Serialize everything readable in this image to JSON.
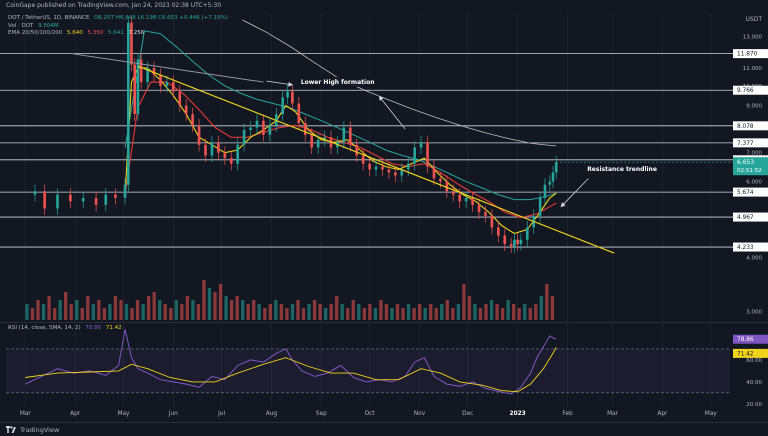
{
  "header": {
    "published": "CoinGape published on TradingView.com, Jan 24, 2023 02:38 UTC+5:30"
  },
  "legend": {
    "symbol_line": "DOT / TetherUS, 1D, BINANCE",
    "ohlc": "O6.207 H6.848 L6.198 C6.653 +0.446 (+7.19%)",
    "vol_label": "Vol · DOT",
    "vol_value": "9.504M",
    "ema_label": "EMA 20/50/100/200",
    "ema_values": [
      "5.640",
      "5.350",
      "5.641",
      "7.256"
    ]
  },
  "rsi_legend": {
    "label": "RSI (14, close, SMA, 14, 2)",
    "rsi_value": "78.86",
    "sma_value": "71.42"
  },
  "unit_label": "USDT",
  "footer": {
    "brand": "TradingView"
  },
  "colors": {
    "background": "#131722",
    "up": "#26a69a",
    "down": "#ef5350",
    "ema20": "#f0d31b",
    "ema50": "#e53935",
    "ema100": "#26a69a",
    "ema200": "#bfbfbf",
    "trendline": "#e8d11f",
    "level": "#d1d4dc",
    "rsi": "#7e57c2",
    "rsi_sma": "#f0d31b"
  },
  "chart_data": [
    {
      "type": "candlestick",
      "symbol": "DOT/USDT",
      "timeframe": "1D",
      "y_scale": "log",
      "ylim": [
        2.9,
        14.2
      ],
      "x_ticks": [
        "Mar",
        "Apr",
        "May",
        "Jun",
        "Jul",
        "Aug",
        "Sep",
        "Oct",
        "Nov",
        "Dec",
        "2023",
        "Feb",
        "Mar",
        "Apr",
        "May"
      ],
      "x_ticks_values": [
        0,
        31,
        61,
        92,
        122,
        153,
        184,
        214,
        245,
        275,
        306,
        337,
        365,
        396,
        426
      ],
      "x_range": [
        -12,
        438
      ],
      "y_ticks": [
        13.0,
        12.0,
        11.0,
        10.0,
        9.0,
        8.0,
        7.0,
        6.0,
        4.0,
        3.0
      ],
      "y_ticks_labels": [
        "13.000",
        "12.000",
        "11.000",
        "10.000",
        "9.000",
        "8.000",
        "7.000",
        "6.000",
        "4.000",
        "3.000"
      ],
      "horizontal_levels": [
        11.87,
        9.766,
        8.078,
        7.377,
        6.74,
        5.674,
        4.967,
        4.233
      ],
      "horizontal_levels_labels": [
        "11.870",
        "9.766",
        "8.078",
        "7.377",
        "6.740",
        "5.674",
        "4.967",
        "4.233"
      ],
      "current_price": "6.653",
      "countdown": "02:51:52",
      "price_path": [
        [
          0,
          5.6
        ],
        [
          6,
          5.7
        ],
        [
          12,
          5.2
        ],
        [
          20,
          5.6
        ],
        [
          28,
          5.4
        ],
        [
          36,
          5.5
        ],
        [
          44,
          5.3
        ],
        [
          50,
          5.6
        ],
        [
          56,
          5.5
        ],
        [
          62,
          5.9
        ],
        [
          64,
          14.0
        ],
        [
          66,
          11.2
        ],
        [
          68,
          8.6
        ],
        [
          70,
          11.5
        ],
        [
          72,
          10.2
        ],
        [
          76,
          11.0
        ],
        [
          80,
          10.6
        ],
        [
          84,
          10.0
        ],
        [
          88,
          10.2
        ],
        [
          92,
          9.7
        ],
        [
          96,
          9.0
        ],
        [
          100,
          8.6
        ],
        [
          104,
          8.1
        ],
        [
          108,
          7.3
        ],
        [
          112,
          6.9
        ],
        [
          116,
          7.4
        ],
        [
          120,
          7.0
        ],
        [
          124,
          6.8
        ],
        [
          128,
          6.6
        ],
        [
          132,
          7.3
        ],
        [
          136,
          7.9
        ],
        [
          140,
          8.0
        ],
        [
          144,
          8.3
        ],
        [
          148,
          7.7
        ],
        [
          152,
          8.1
        ],
        [
          156,
          8.6
        ],
        [
          160,
          9.4
        ],
        [
          163,
          9.7
        ],
        [
          166,
          9.1
        ],
        [
          170,
          8.2
        ],
        [
          174,
          7.7
        ],
        [
          178,
          7.2
        ],
        [
          182,
          7.5
        ],
        [
          186,
          7.6
        ],
        [
          190,
          7.2
        ],
        [
          194,
          7.4
        ],
        [
          198,
          8.0
        ],
        [
          202,
          7.3
        ],
        [
          206,
          6.9
        ],
        [
          210,
          6.6
        ],
        [
          214,
          6.4
        ],
        [
          218,
          6.5
        ],
        [
          222,
          6.4
        ],
        [
          226,
          6.3
        ],
        [
          230,
          6.2
        ],
        [
          234,
          6.4
        ],
        [
          238,
          6.6
        ],
        [
          242,
          7.2
        ],
        [
          246,
          7.4
        ],
        [
          250,
          6.5
        ],
        [
          254,
          6.1
        ],
        [
          258,
          6.0
        ],
        [
          262,
          5.7
        ],
        [
          266,
          5.6
        ],
        [
          270,
          5.4
        ],
        [
          274,
          5.5
        ],
        [
          278,
          5.3
        ],
        [
          282,
          5.1
        ],
        [
          286,
          5.0
        ],
        [
          290,
          4.7
        ],
        [
          294,
          4.5
        ],
        [
          298,
          4.3
        ],
        [
          302,
          4.25
        ],
        [
          304,
          4.4
        ],
        [
          306,
          4.3
        ],
        [
          308,
          4.4
        ],
        [
          312,
          4.7
        ],
        [
          316,
          5.0
        ],
        [
          320,
          5.5
        ],
        [
          323,
          5.9
        ],
        [
          326,
          6.0
        ],
        [
          328,
          6.3
        ],
        [
          330,
          6.653
        ]
      ],
      "ema20": [
        [
          62,
          5.6
        ],
        [
          66,
          10.2
        ],
        [
          70,
          11.0
        ],
        [
          76,
          11.0
        ],
        [
          84,
          10.3
        ],
        [
          92,
          9.5
        ],
        [
          100,
          8.6
        ],
        [
          108,
          7.6
        ],
        [
          116,
          7.3
        ],
        [
          124,
          7.0
        ],
        [
          132,
          7.1
        ],
        [
          140,
          7.6
        ],
        [
          148,
          7.9
        ],
        [
          156,
          8.3
        ],
        [
          162,
          9.0
        ],
        [
          168,
          8.7
        ],
        [
          176,
          7.9
        ],
        [
          184,
          7.5
        ],
        [
          192,
          7.4
        ],
        [
          200,
          7.5
        ],
        [
          208,
          7.1
        ],
        [
          216,
          6.7
        ],
        [
          224,
          6.5
        ],
        [
          232,
          6.4
        ],
        [
          240,
          6.6
        ],
        [
          248,
          6.8
        ],
        [
          256,
          6.3
        ],
        [
          264,
          5.9
        ],
        [
          272,
          5.6
        ],
        [
          280,
          5.4
        ],
        [
          288,
          5.1
        ],
        [
          296,
          4.75
        ],
        [
          304,
          4.55
        ],
        [
          312,
          4.65
        ],
        [
          320,
          5.1
        ],
        [
          326,
          5.5
        ],
        [
          330,
          5.64
        ]
      ],
      "ema50": [
        [
          62,
          5.6
        ],
        [
          70,
          8.9
        ],
        [
          78,
          10.2
        ],
        [
          88,
          10.2
        ],
        [
          98,
          9.6
        ],
        [
          108,
          8.8
        ],
        [
          118,
          8.0
        ],
        [
          128,
          7.6
        ],
        [
          138,
          7.6
        ],
        [
          148,
          7.8
        ],
        [
          158,
          8.0
        ],
        [
          168,
          8.1
        ],
        [
          178,
          7.9
        ],
        [
          188,
          7.6
        ],
        [
          198,
          7.4
        ],
        [
          208,
          7.2
        ],
        [
          218,
          6.9
        ],
        [
          228,
          6.6
        ],
        [
          238,
          6.5
        ],
        [
          248,
          6.6
        ],
        [
          258,
          6.3
        ],
        [
          268,
          5.95
        ],
        [
          278,
          5.65
        ],
        [
          288,
          5.4
        ],
        [
          298,
          5.1
        ],
        [
          308,
          4.95
        ],
        [
          318,
          5.05
        ],
        [
          326,
          5.25
        ],
        [
          330,
          5.35
        ]
      ],
      "ema100": [
        [
          62,
          7.2
        ],
        [
          74,
          13.4
        ],
        [
          84,
          13.2
        ],
        [
          94,
          12.3
        ],
        [
          104,
          11.4
        ],
        [
          114,
          10.6
        ],
        [
          124,
          10.0
        ],
        [
          134,
          9.6
        ],
        [
          144,
          9.3
        ],
        [
          154,
          9.1
        ],
        [
          164,
          8.9
        ],
        [
          174,
          8.6
        ],
        [
          184,
          8.3
        ],
        [
          194,
          8.0
        ],
        [
          204,
          7.7
        ],
        [
          214,
          7.4
        ],
        [
          224,
          7.1
        ],
        [
          234,
          6.9
        ],
        [
          244,
          6.75
        ],
        [
          254,
          6.5
        ],
        [
          264,
          6.25
        ],
        [
          274,
          6.0
        ],
        [
          284,
          5.8
        ],
        [
          294,
          5.6
        ],
        [
          304,
          5.45
        ],
        [
          314,
          5.45
        ],
        [
          324,
          5.55
        ],
        [
          330,
          5.64
        ]
      ],
      "ema200": [
        [
          135,
          14.2
        ],
        [
          150,
          13.3
        ],
        [
          165,
          12.3
        ],
        [
          180,
          11.3
        ],
        [
          195,
          10.4
        ],
        [
          210,
          9.8
        ],
        [
          225,
          9.3
        ],
        [
          240,
          8.85
        ],
        [
          255,
          8.45
        ],
        [
          270,
          8.1
        ],
        [
          285,
          7.8
        ],
        [
          300,
          7.55
        ],
        [
          315,
          7.35
        ],
        [
          330,
          7.256
        ]
      ],
      "trendline": [
        [
          70,
          11.1
        ],
        [
          366,
          4.1
        ]
      ],
      "gray_line": [
        [
          30,
          11.85
        ],
        [
          148,
          10.2
        ]
      ],
      "annotations": [
        {
          "text": "Lower High formation",
          "x": 170,
          "y": 10.1
        },
        {
          "text": "Resistance trendline",
          "x": 348,
          "y": 6.35
        }
      ],
      "arrows": [
        {
          "from": [
            150,
            10.25
          ],
          "to": [
            166,
            10.05
          ]
        },
        {
          "from": [
            236,
            7.95
          ],
          "to": [
            220,
            9.45
          ]
        },
        {
          "from": [
            350,
            6.1
          ],
          "to": [
            333,
            5.25
          ]
        }
      ]
    },
    {
      "type": "bar",
      "title": "Volume",
      "x_range": [
        -12,
        438
      ],
      "values_relative": [
        0.4,
        0.3,
        0.5,
        0.4,
        0.6,
        0.3,
        0.5,
        0.7,
        0.4,
        0.5,
        0.3,
        0.6,
        0.4,
        0.5,
        0.3,
        0.4,
        0.6,
        0.5,
        0.4,
        0.3,
        0.5,
        0.4,
        0.6,
        0.7,
        0.5,
        0.4,
        0.3,
        0.5,
        0.4,
        0.6,
        0.5,
        0.4,
        1.0,
        0.8,
        0.7,
        0.9,
        0.6,
        0.5,
        0.6,
        0.5,
        0.4,
        0.5,
        0.4,
        0.3,
        0.4,
        0.5,
        0.4,
        0.3,
        0.4,
        0.5,
        0.3,
        0.4,
        0.5,
        0.4,
        0.3,
        0.4,
        0.6,
        0.4,
        0.3,
        0.5,
        0.4,
        0.3,
        0.4,
        0.3,
        0.5,
        0.4,
        0.3,
        0.4,
        0.3,
        0.4,
        0.3,
        0.4,
        0.3,
        0.4,
        0.3,
        0.4,
        0.5,
        0.3,
        0.4,
        0.9,
        0.6,
        0.4,
        0.3,
        0.4,
        0.5,
        0.4,
        0.3,
        0.5,
        0.4,
        0.3,
        0.4,
        0.3,
        0.4,
        0.6,
        0.9,
        0.6
      ]
    },
    {
      "type": "line",
      "title": "RSI",
      "ylim": [
        18,
        90
      ],
      "y_ticks": [
        80.0,
        60.0,
        40.0,
        20.0
      ],
      "y_ticks_labels": [
        "80.00",
        "60.00",
        "40.00",
        "20.00"
      ],
      "band": [
        30,
        70
      ],
      "current_rsi": "78.86",
      "current_sma": "71.42",
      "series": [
        {
          "key": "rsi",
          "values": [
            [
              0,
              38
            ],
            [
              10,
              45
            ],
            [
              20,
              52
            ],
            [
              30,
              48
            ],
            [
              40,
              50
            ],
            [
              50,
              46
            ],
            [
              58,
              55
            ],
            [
              62,
              88
            ],
            [
              66,
              62
            ],
            [
              70,
              52
            ],
            [
              76,
              48
            ],
            [
              84,
              42
            ],
            [
              92,
              40
            ],
            [
              100,
              38
            ],
            [
              108,
              35
            ],
            [
              116,
              45
            ],
            [
              124,
              42
            ],
            [
              132,
              55
            ],
            [
              140,
              60
            ],
            [
              148,
              58
            ],
            [
              156,
              66
            ],
            [
              162,
              70
            ],
            [
              166,
              60
            ],
            [
              172,
              50
            ],
            [
              180,
              45
            ],
            [
              188,
              48
            ],
            [
              196,
              55
            ],
            [
              204,
              44
            ],
            [
              212,
              40
            ],
            [
              220,
              42
            ],
            [
              228,
              40
            ],
            [
              236,
              45
            ],
            [
              242,
              58
            ],
            [
              248,
              62
            ],
            [
              254,
              45
            ],
            [
              262,
              38
            ],
            [
              270,
              36
            ],
            [
              278,
              40
            ],
            [
              286,
              34
            ],
            [
              292,
              32
            ],
            [
              298,
              30
            ],
            [
              302,
              29
            ],
            [
              308,
              35
            ],
            [
              314,
              48
            ],
            [
              318,
              62
            ],
            [
              322,
              72
            ],
            [
              326,
              82
            ],
            [
              328,
              80
            ],
            [
              330,
              78.86
            ]
          ]
        },
        {
          "key": "sma",
          "values": [
            [
              0,
              44
            ],
            [
              20,
              48
            ],
            [
              40,
              49
            ],
            [
              58,
              50
            ],
            [
              66,
              56
            ],
            [
              76,
              52
            ],
            [
              90,
              44
            ],
            [
              104,
              40
            ],
            [
              118,
              40
            ],
            [
              132,
              48
            ],
            [
              148,
              56
            ],
            [
              162,
              62
            ],
            [
              176,
              54
            ],
            [
              190,
              48
            ],
            [
              204,
              48
            ],
            [
              218,
              42
            ],
            [
              232,
              42
            ],
            [
              246,
              52
            ],
            [
              258,
              48
            ],
            [
              270,
              40
            ],
            [
              284,
              37
            ],
            [
              296,
              32
            ],
            [
              306,
              31
            ],
            [
              314,
              38
            ],
            [
              322,
              52
            ],
            [
              328,
              66
            ],
            [
              330,
              71.42
            ]
          ]
        }
      ]
    }
  ]
}
